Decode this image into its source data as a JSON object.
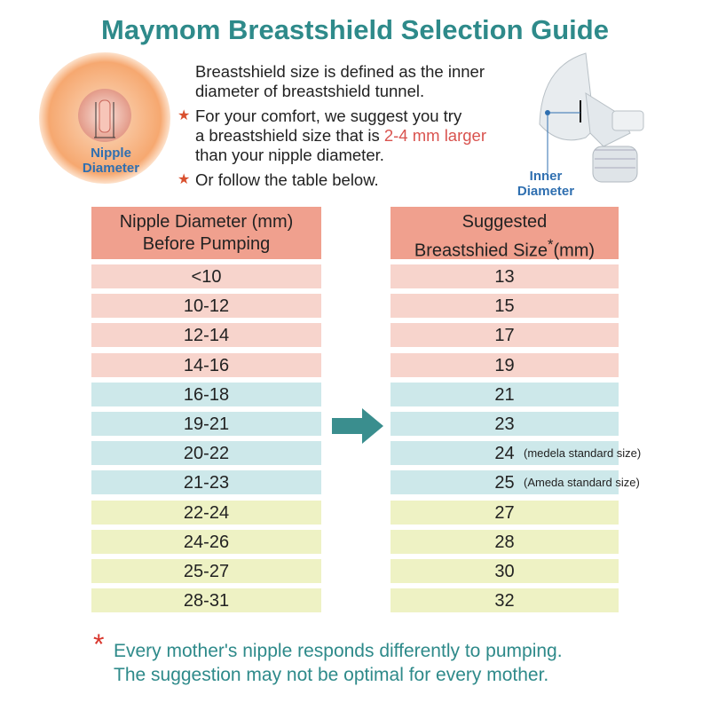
{
  "header": {
    "title": "Maymom Breastshield Selection Guide"
  },
  "illustration": {
    "nipple_label": [
      "Nipple",
      "Diameter"
    ],
    "shield_label": [
      "Inner",
      "Diameter"
    ]
  },
  "intro": {
    "definition": [
      "Breastshield size is defined as the inner",
      "diameter of breastshield tunnel."
    ],
    "comfort": {
      "line1": "For your comfort, we suggest you try",
      "line2": "a breastshield size that is",
      "highlight": "2-4 mm larger",
      "line3": "than your nipple diameter."
    },
    "follow": "Or follow the table below.",
    "bullet": "★"
  },
  "table": {
    "left_header": [
      "Nipple Diameter (mm)",
      "Before Pumping"
    ],
    "right_header": {
      "line1": "Suggested",
      "line2": "Breastshied Size",
      "asterisk": "*",
      "unit": "(mm)"
    },
    "rows": [
      [
        "<10",
        13
      ],
      [
        "10-12",
        15
      ],
      [
        "12-14",
        17
      ],
      [
        "14-16",
        19
      ],
      [
        "16-18",
        21
      ],
      [
        "19-21",
        23
      ],
      [
        "20-22",
        24,
        "(medela standard size)"
      ],
      [
        "21-23",
        25,
        "(Ameda standard size)"
      ],
      [
        "22-24",
        27
      ],
      [
        "24-26",
        28
      ],
      [
        "25-27",
        30
      ],
      [
        "28-31",
        32
      ]
    ]
  },
  "footnote": {
    "asterisk": "*",
    "lines": [
      "Every mother's nipple responds differently to pumping.",
      "The suggestion may not be optimal for every mother."
    ]
  }
}
